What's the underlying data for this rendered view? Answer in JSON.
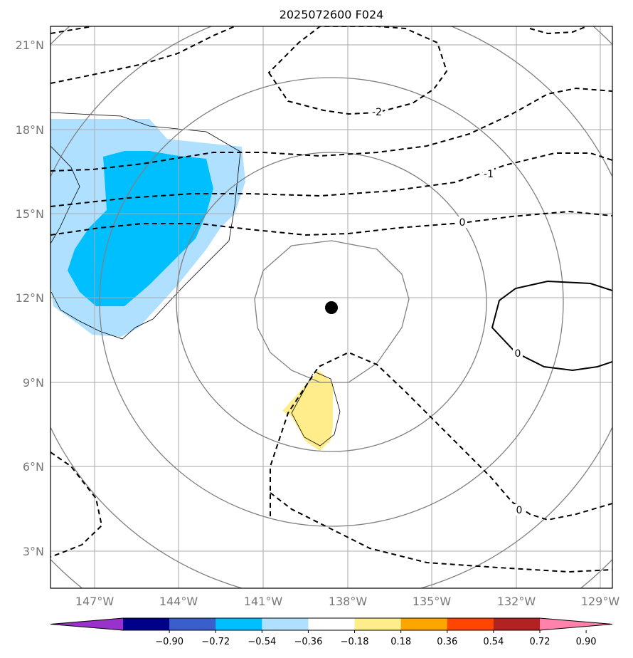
{
  "title": "2025072600 F024",
  "lon_ticks": [
    "147°W",
    "144°W",
    "141°W",
    "138°W",
    "135°W",
    "132°W",
    "129°W"
  ],
  "lat_ticks": [
    "21°N",
    "18°N",
    "15°N",
    "12°N",
    "9°N",
    "6°N",
    "3°N"
  ],
  "contour_labels": [
    "-2",
    "-1",
    "0",
    "0",
    "0"
  ],
  "colorbar": {
    "labels": [
      "−0.90",
      "−0.72",
      "−0.54",
      "−0.36",
      "−0.18",
      "0.18",
      "0.36",
      "0.54",
      "0.72",
      "0.90"
    ],
    "colors": [
      "#9932cc",
      "#00008b",
      "#3a5fcd",
      "#00bfff",
      "#b0e0ff",
      "#ffffff",
      "#ffec8b",
      "#ffa500",
      "#ff4500",
      "#b22222",
      "#ff82ab"
    ]
  },
  "center_marker": {
    "lon": -138.5,
    "lat": 11.6
  },
  "shade_colors": {
    "light_blue": "#b0e0ff",
    "blue": "#00bfff",
    "yellow": "#ffec8b"
  }
}
